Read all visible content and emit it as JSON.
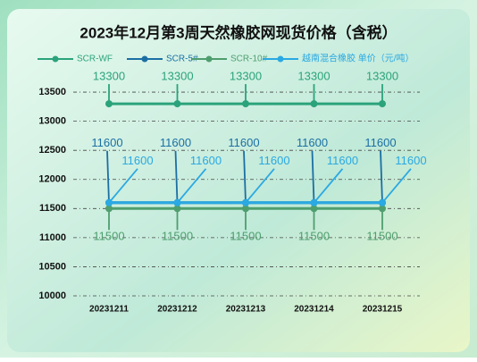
{
  "chart_data": {
    "type": "line",
    "title": "2023年12月第3周天然橡胶网现货价格（含税）",
    "categories": [
      "20231211",
      "20231212",
      "20231213",
      "20231214",
      "20231215"
    ],
    "series": [
      {
        "name": "SCR-WF",
        "color": "#2ba37b",
        "values": [
          13300,
          13300,
          13300,
          13300,
          13300
        ]
      },
      {
        "name": "SCR-5#",
        "color": "#1b6fa3",
        "values": [
          11600,
          11600,
          11600,
          11600,
          11600
        ]
      },
      {
        "name": "SCR-10#",
        "color": "#4f9e6e",
        "values": [
          11500,
          11500,
          11500,
          11500,
          11500
        ]
      },
      {
        "name": "越南混合橡胶 单价（元/吨）",
        "color": "#2aa9e2",
        "values": [
          11600,
          11600,
          11600,
          11600,
          11600
        ]
      }
    ],
    "ylim": [
      10000,
      13900
    ],
    "yticks": [
      10000,
      10500,
      11000,
      11500,
      12000,
      12500,
      13000,
      13500
    ],
    "grid": true
  }
}
